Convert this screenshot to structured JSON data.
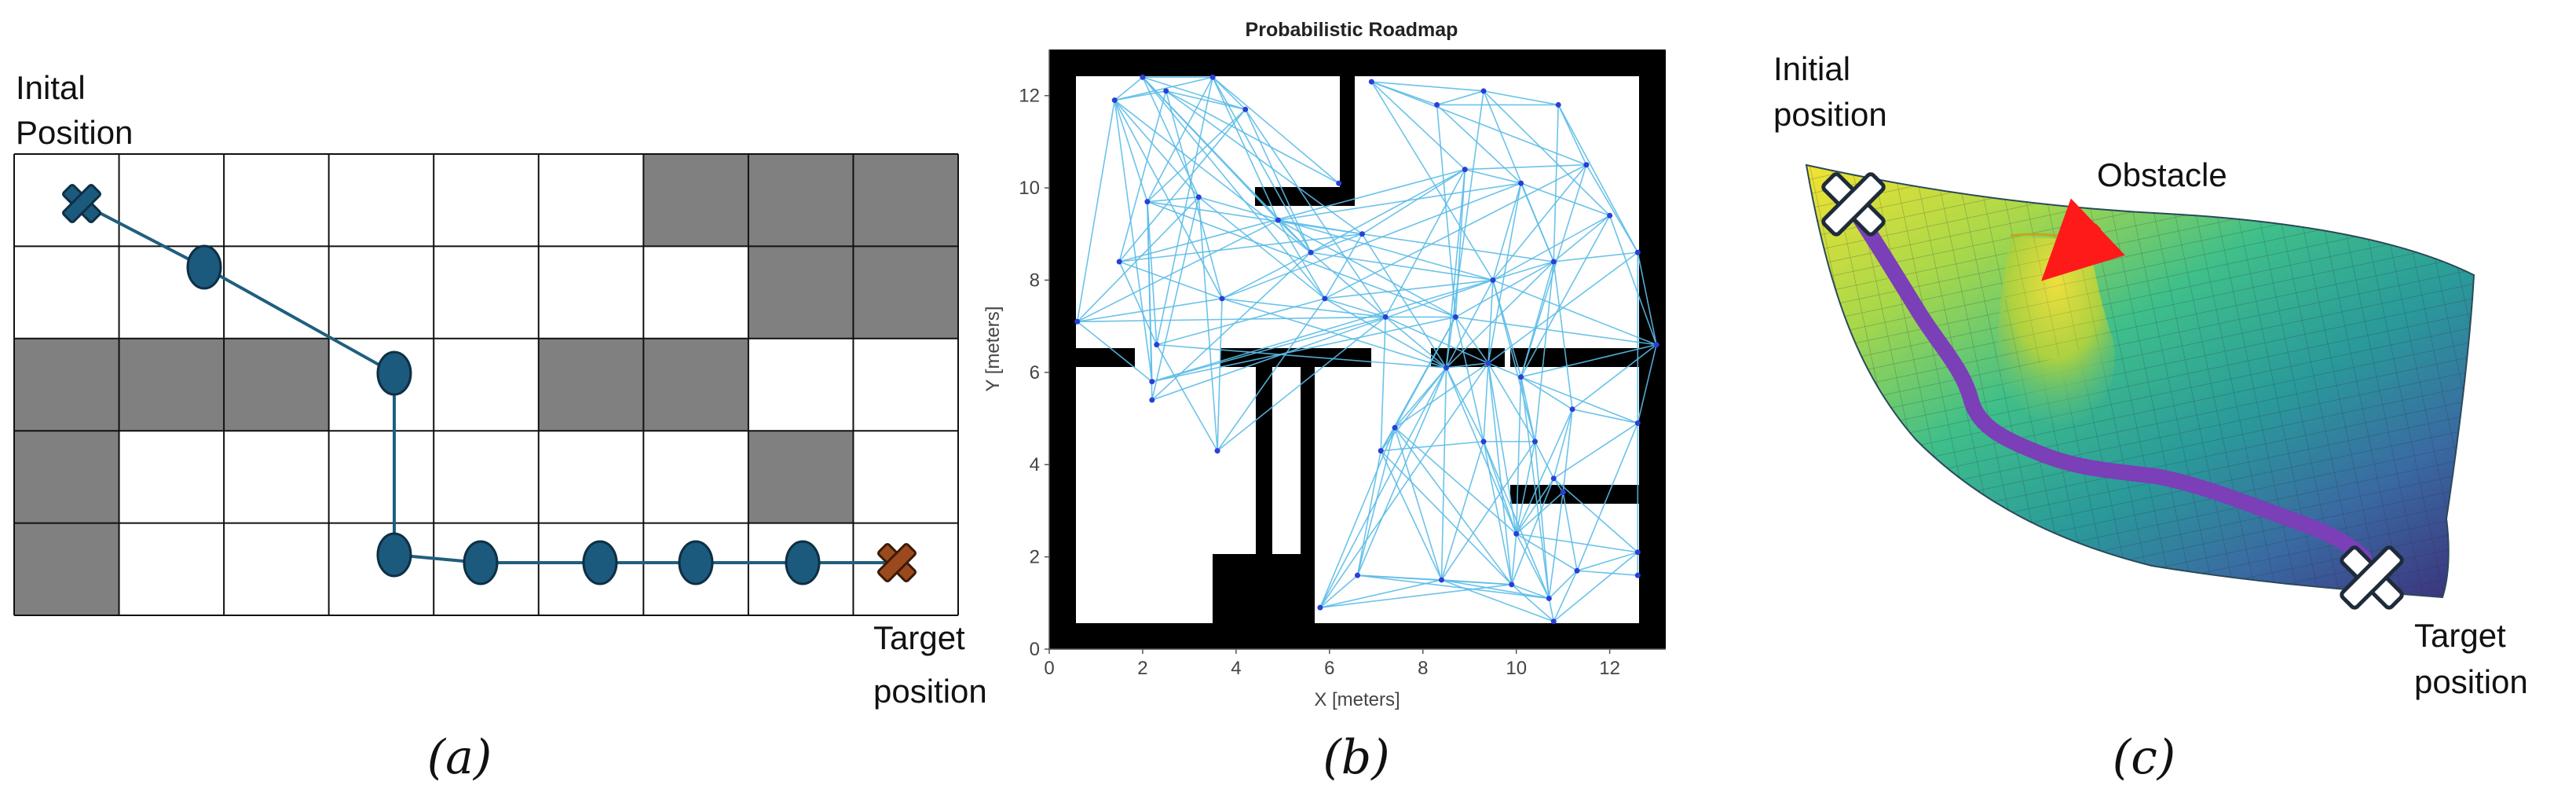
{
  "panel_a": {
    "initial_label_line1": "Inital",
    "initial_label_line2": "Position",
    "target_label_line1": "Target",
    "target_label_line2": "position",
    "caption": "(a)",
    "grid_rows": 5,
    "grid_cols": 9,
    "obstacle_cells": [
      [
        0,
        6
      ],
      [
        0,
        7
      ],
      [
        0,
        8
      ],
      [
        1,
        7
      ],
      [
        1,
        8
      ],
      [
        2,
        0
      ],
      [
        2,
        1
      ],
      [
        2,
        2
      ],
      [
        2,
        5
      ],
      [
        2,
        6
      ],
      [
        3,
        0
      ],
      [
        3,
        7
      ],
      [
        4,
        0
      ]
    ],
    "colors": {
      "obstacle": "#808080",
      "path": "#1f5f7e",
      "node": "#1b5a7c",
      "start": "#1b5a7c",
      "target": "#9a4a1c"
    }
  },
  "panel_b": {
    "title": "Probabilistic Roadmap",
    "xlabel": "X [meters]",
    "ylabel": "Y [meters]",
    "caption": "(b)",
    "x_ticks": [
      "0",
      "2",
      "4",
      "6",
      "8",
      "10",
      "12"
    ],
    "y_ticks": [
      "0",
      "2",
      "4",
      "6",
      "8",
      "10",
      "12"
    ],
    "x_range": [
      0,
      13.2
    ],
    "y_range": [
      0,
      13
    ],
    "colors": {
      "edge": "#5bbde8",
      "node": "#2a3fd6",
      "wall": "#000000"
    },
    "nodes": [
      [
        1.4,
        11.9
      ],
      [
        2.0,
        12.4
      ],
      [
        2.5,
        12.1
      ],
      [
        3.5,
        12.4
      ],
      [
        4.2,
        11.7
      ],
      [
        6.2,
        10.1
      ],
      [
        2.1,
        9.7
      ],
      [
        3.2,
        9.8
      ],
      [
        1.5,
        8.4
      ],
      [
        0.6,
        7.1
      ],
      [
        3.7,
        7.6
      ],
      [
        2.3,
        6.6
      ],
      [
        2.2,
        5.8
      ],
      [
        2.2,
        5.4
      ],
      [
        3.6,
        4.3
      ],
      [
        4.9,
        9.3
      ],
      [
        5.6,
        8.6
      ],
      [
        6.7,
        9.0
      ],
      [
        5.9,
        7.6
      ],
      [
        7.2,
        7.2
      ],
      [
        6.9,
        12.3
      ],
      [
        8.3,
        11.8
      ],
      [
        9.3,
        12.1
      ],
      [
        10.9,
        11.8
      ],
      [
        8.9,
        10.4
      ],
      [
        10.1,
        10.1
      ],
      [
        11.5,
        10.5
      ],
      [
        12.0,
        9.4
      ],
      [
        12.6,
        8.6
      ],
      [
        10.8,
        8.4
      ],
      [
        9.5,
        8.0
      ],
      [
        8.7,
        7.2
      ],
      [
        13.0,
        6.6
      ],
      [
        8.5,
        6.1
      ],
      [
        9.4,
        6.2
      ],
      [
        10.1,
        5.9
      ],
      [
        12.6,
        4.9
      ],
      [
        11.2,
        5.2
      ],
      [
        7.1,
        4.3
      ],
      [
        9.3,
        4.5
      ],
      [
        10.4,
        4.5
      ],
      [
        10.8,
        3.7
      ],
      [
        11.0,
        3.4
      ],
      [
        10.0,
        2.5
      ],
      [
        12.6,
        2.1
      ],
      [
        11.3,
        1.7
      ],
      [
        6.6,
        1.6
      ],
      [
        8.4,
        1.5
      ],
      [
        9.9,
        1.4
      ],
      [
        10.7,
        1.1
      ],
      [
        5.8,
        0.9
      ],
      [
        10.8,
        0.6
      ],
      [
        12.6,
        1.6
      ],
      [
        7.4,
        4.8
      ]
    ],
    "edges": [
      [
        0,
        1
      ],
      [
        0,
        2
      ],
      [
        0,
        3
      ],
      [
        0,
        6
      ],
      [
        0,
        7
      ],
      [
        0,
        9
      ],
      [
        0,
        10
      ],
      [
        0,
        12
      ],
      [
        1,
        3
      ],
      [
        1,
        4
      ],
      [
        1,
        7
      ],
      [
        1,
        15
      ],
      [
        1,
        16
      ],
      [
        2,
        4
      ],
      [
        2,
        5
      ],
      [
        2,
        8
      ],
      [
        2,
        10
      ],
      [
        3,
        4
      ],
      [
        3,
        5
      ],
      [
        3,
        6
      ],
      [
        3,
        11
      ],
      [
        3,
        15
      ],
      [
        4,
        6
      ],
      [
        4,
        8
      ],
      [
        4,
        16
      ],
      [
        6,
        7
      ],
      [
        6,
        11
      ],
      [
        6,
        12
      ],
      [
        6,
        13
      ],
      [
        7,
        9
      ],
      [
        7,
        13
      ],
      [
        7,
        14
      ],
      [
        8,
        10
      ],
      [
        8,
        11
      ],
      [
        9,
        10
      ],
      [
        9,
        12
      ],
      [
        9,
        15
      ],
      [
        10,
        14
      ],
      [
        10,
        16
      ],
      [
        11,
        14
      ],
      [
        15,
        16
      ],
      [
        15,
        17
      ],
      [
        15,
        18
      ],
      [
        16,
        17
      ],
      [
        16,
        19
      ],
      [
        17,
        18
      ],
      [
        18,
        19
      ],
      [
        17,
        24
      ],
      [
        18,
        30
      ],
      [
        19,
        31
      ],
      [
        20,
        21
      ],
      [
        20,
        22
      ],
      [
        20,
        24
      ],
      [
        20,
        26
      ],
      [
        21,
        22
      ],
      [
        21,
        23
      ],
      [
        21,
        25
      ],
      [
        22,
        23
      ],
      [
        22,
        27
      ],
      [
        22,
        29
      ],
      [
        23,
        26
      ],
      [
        23,
        28
      ],
      [
        24,
        25
      ],
      [
        24,
        26
      ],
      [
        25,
        27
      ],
      [
        25,
        29
      ],
      [
        26,
        28
      ],
      [
        27,
        30
      ],
      [
        28,
        32
      ],
      [
        29,
        31
      ],
      [
        30,
        32
      ],
      [
        31,
        32
      ],
      [
        29,
        33
      ],
      [
        30,
        34
      ],
      [
        24,
        33
      ],
      [
        25,
        34
      ],
      [
        26,
        35
      ],
      [
        21,
        31
      ],
      [
        20,
        30
      ],
      [
        23,
        29
      ],
      [
        22,
        33
      ],
      [
        28,
        34
      ],
      [
        27,
        35
      ],
      [
        8,
        17
      ],
      [
        10,
        19
      ],
      [
        11,
        18
      ],
      [
        12,
        19
      ],
      [
        13,
        16
      ],
      [
        14,
        19
      ],
      [
        0,
        16
      ],
      [
        6,
        17
      ],
      [
        7,
        18
      ],
      [
        9,
        19
      ],
      [
        2,
        17
      ],
      [
        3,
        16
      ],
      [
        4,
        19
      ],
      [
        1,
        18
      ],
      [
        12,
        31
      ],
      [
        13,
        30
      ],
      [
        11,
        33
      ],
      [
        14,
        18
      ],
      [
        8,
        24
      ],
      [
        10,
        25
      ],
      [
        6,
        31
      ],
      [
        7,
        30
      ],
      [
        16,
        24
      ],
      [
        17,
        29
      ],
      [
        18,
        33
      ],
      [
        19,
        34
      ],
      [
        15,
        25
      ],
      [
        19,
        24
      ],
      [
        18,
        26
      ],
      [
        17,
        33
      ],
      [
        16,
        30
      ],
      [
        15,
        31
      ],
      [
        10,
        33
      ],
      [
        12,
        29
      ],
      [
        33,
        34
      ],
      [
        34,
        35
      ],
      [
        35,
        36
      ],
      [
        35,
        37
      ],
      [
        36,
        37
      ],
      [
        33,
        38
      ],
      [
        33,
        39
      ],
      [
        34,
        40
      ],
      [
        34,
        53
      ],
      [
        38,
        53
      ],
      [
        38,
        39
      ],
      [
        39,
        40
      ],
      [
        40,
        41
      ],
      [
        41,
        42
      ],
      [
        37,
        42
      ],
      [
        36,
        41
      ],
      [
        38,
        46
      ],
      [
        38,
        47
      ],
      [
        39,
        43
      ],
      [
        39,
        48
      ],
      [
        53,
        46
      ],
      [
        53,
        47
      ],
      [
        53,
        43
      ],
      [
        53,
        50
      ],
      [
        40,
        43
      ],
      [
        41,
        44
      ],
      [
        42,
        45
      ],
      [
        43,
        44
      ],
      [
        43,
        45
      ],
      [
        44,
        45
      ],
      [
        45,
        52
      ],
      [
        44,
        52
      ],
      [
        46,
        47
      ],
      [
        47,
        48
      ],
      [
        48,
        49
      ],
      [
        49,
        51
      ],
      [
        50,
        46
      ],
      [
        50,
        47
      ],
      [
        50,
        48
      ],
      [
        46,
        48
      ],
      [
        47,
        49
      ],
      [
        48,
        51
      ],
      [
        43,
        48
      ],
      [
        43,
        49
      ],
      [
        45,
        49
      ],
      [
        45,
        51
      ],
      [
        44,
        51
      ],
      [
        47,
        51
      ],
      [
        46,
        49
      ],
      [
        33,
        47
      ],
      [
        34,
        48
      ],
      [
        35,
        43
      ],
      [
        37,
        43
      ],
      [
        36,
        45
      ],
      [
        31,
        39
      ],
      [
        31,
        38
      ],
      [
        31,
        53
      ],
      [
        30,
        33
      ],
      [
        30,
        40
      ],
      [
        29,
        40
      ],
      [
        29,
        37
      ],
      [
        28,
        36
      ],
      [
        32,
        36
      ],
      [
        32,
        37
      ],
      [
        33,
        46
      ],
      [
        34,
        39
      ],
      [
        35,
        40
      ],
      [
        39,
        47
      ],
      [
        40,
        47
      ],
      [
        41,
        48
      ],
      [
        42,
        49
      ],
      [
        36,
        44
      ],
      [
        37,
        41
      ],
      [
        38,
        48
      ],
      [
        53,
        48
      ],
      [
        33,
        43
      ],
      [
        34,
        43
      ],
      [
        39,
        49
      ],
      [
        40,
        49
      ],
      [
        41,
        43
      ],
      [
        42,
        43
      ],
      [
        33,
        50
      ],
      [
        34,
        50
      ],
      [
        35,
        49
      ],
      [
        33,
        53
      ],
      [
        19,
        33
      ],
      [
        19,
        38
      ],
      [
        31,
        34
      ],
      [
        24,
        31
      ],
      [
        25,
        30
      ],
      [
        26,
        30
      ],
      [
        27,
        29
      ],
      [
        28,
        29
      ],
      [
        27,
        32
      ],
      [
        30,
        35
      ],
      [
        29,
        35
      ],
      [
        32,
        35
      ]
    ]
  },
  "panel_c": {
    "initial_label_line1": "Initial",
    "initial_label_line2": "position",
    "obstacle_label": "Obstacle",
    "target_label_line1": "Target",
    "target_label_line2": "position",
    "caption": "(c)",
    "colors": {
      "path": "#7b3fb8",
      "arrow": "#ff1a1a",
      "marker_fill": "#ffffff",
      "marker_stroke": "#1e2b3a"
    }
  }
}
